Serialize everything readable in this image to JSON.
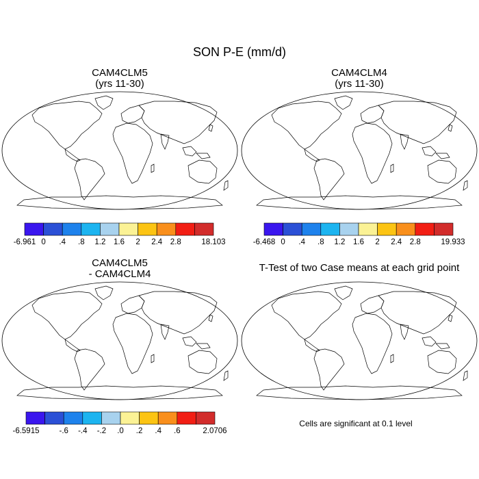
{
  "figure": {
    "title": "SON P-E (mm/d)",
    "footnote": "Cells are significant at 0.1 level"
  },
  "panels": [
    {
      "id": "case1",
      "title_line1": "CAM4CLM5",
      "title_line2": "(yrs 11-30)"
    },
    {
      "id": "case2",
      "title_line1": "CAM4CLM4",
      "title_line2": "(yrs 11-30)"
    },
    {
      "id": "diff",
      "title_line1": "CAM4CLM5",
      "title_line2": "- CAM4CLM4"
    },
    {
      "id": "ttest",
      "title_line1": "T-Test of two Case means at each grid point",
      "title_line2": ""
    }
  ],
  "colorbars": [
    {
      "id": "cb1",
      "colors": [
        "#3a16ee",
        "#2b50d6",
        "#1e82ec",
        "#1cb4f0",
        "#a8d2ee",
        "#fbf295",
        "#fcc413",
        "#f98f1c",
        "#f21e14",
        "#d22c2b"
      ],
      "labels": [
        "-6.961",
        "0",
        ".4",
        ".8",
        "1.2",
        "1.6",
        "2",
        "2.4",
        "2.8",
        "18.103"
      ]
    },
    {
      "id": "cb2",
      "colors": [
        "#3a16ee",
        "#2b50d6",
        "#1e82ec",
        "#1cb4f0",
        "#a8d2ee",
        "#fbf295",
        "#fcc413",
        "#f98f1c",
        "#f21e14",
        "#d22c2b"
      ],
      "labels": [
        "-6.468",
        "0",
        ".4",
        ".8",
        "1.2",
        "1.6",
        "2",
        "2.4",
        "2.8",
        "19.933"
      ]
    },
    {
      "id": "cb3",
      "colors": [
        "#3a16ee",
        "#2b50d6",
        "#1e82ec",
        "#1cb4f0",
        "#a8d2ee",
        "#fbf295",
        "#fcc413",
        "#f98f1c",
        "#f21e14",
        "#d22c2b"
      ],
      "labels": [
        "-6.5915",
        "",
        "-.6",
        "-.4",
        "-.2",
        ".0",
        ".2",
        ".4",
        ".6",
        "2.0706"
      ]
    }
  ],
  "map_colors": {
    "wet_strong": "#d22c2b",
    "wet": "#f21e14",
    "dry": "#3a16ee",
    "dry_mid": "#2b50d6",
    "neutral_blue": "#1e82ec",
    "light_blue": "#a8d2ee",
    "yellow": "#fbf295",
    "orange": "#fcc413",
    "significant": "#ee0000",
    "coast": "#000000"
  }
}
